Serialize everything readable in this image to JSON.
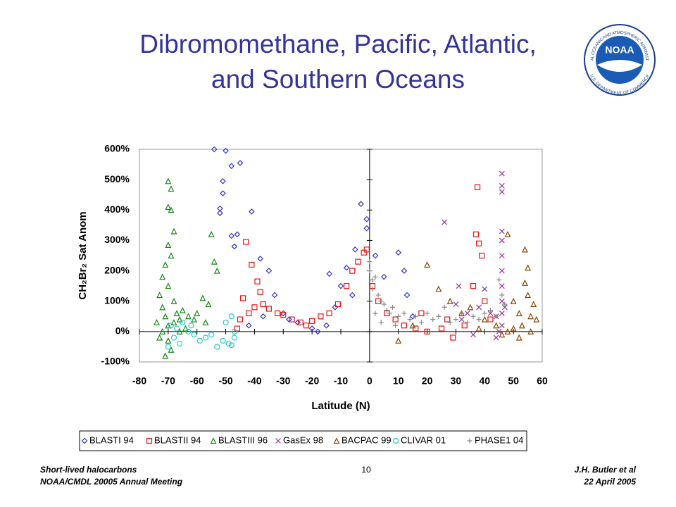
{
  "chart_data": {
    "type": "scatter",
    "title": [
      "Dibromomethane, Pacific, Atlantic,",
      "and Southern Oceans"
    ],
    "xlabel": "Latitude (N)",
    "ylabel": "CH₂Br₂ Sat Anom",
    "xlim": [
      -80,
      60
    ],
    "xticks": [
      -80,
      -70,
      -60,
      -50,
      -40,
      -30,
      -20,
      -10,
      0,
      10,
      20,
      30,
      40,
      50,
      60
    ],
    "ylim": [
      -100,
      600
    ],
    "yticks": [
      {
        "value": -100,
        "label": "-100%"
      },
      {
        "value": 0,
        "label": "0%"
      },
      {
        "value": 100,
        "label": "100%"
      },
      {
        "value": 200,
        "label": "200%"
      },
      {
        "value": 300,
        "label": "300%"
      },
      {
        "value": 400,
        "label": "400%"
      },
      {
        "value": 500,
        "label": "500%"
      },
      {
        "value": 600,
        "label": "600%"
      }
    ],
    "grid": false,
    "legend": "bottom",
    "series": [
      {
        "name": "BLASTI 94",
        "color": "#3333cc",
        "marker": "diamond",
        "x": [
          -54,
          -50,
          -48,
          -45,
          -51,
          -51,
          -52,
          -52,
          -48,
          -46,
          -47,
          -41,
          -38,
          -35,
          -33,
          -30,
          -25,
          -20,
          -15,
          -14,
          -10,
          -8,
          -5,
          -3,
          -1,
          -1,
          2,
          5,
          10,
          12,
          13,
          15,
          -42,
          -37,
          -28,
          -18,
          -12,
          -6
        ],
        "values": [
          600,
          595,
          545,
          555,
          495,
          455,
          405,
          390,
          315,
          320,
          280,
          395,
          240,
          200,
          120,
          60,
          30,
          10,
          20,
          190,
          150,
          210,
          270,
          420,
          370,
          340,
          250,
          180,
          260,
          200,
          120,
          50,
          20,
          50,
          40,
          0,
          80,
          120
        ]
      },
      {
        "name": "BLASTII 94",
        "color": "#ee1111",
        "marker": "square",
        "x": [
          -43,
          -41,
          -39,
          -38,
          -44,
          -45,
          -42,
          -37,
          -35,
          -32,
          -30,
          -27,
          -24,
          -20,
          -17,
          -14,
          -11,
          -8,
          -6,
          -4,
          -2,
          -1,
          1,
          3,
          6,
          9,
          12,
          16,
          20,
          25,
          29,
          33,
          36,
          37,
          37.5,
          38,
          39,
          40,
          42,
          -46,
          -40,
          -22,
          18,
          27
        ],
        "values": [
          295,
          220,
          165,
          130,
          110,
          40,
          60,
          90,
          75,
          60,
          55,
          40,
          30,
          35,
          50,
          60,
          90,
          150,
          200,
          230,
          260,
          270,
          150,
          100,
          60,
          40,
          20,
          10,
          0,
          10,
          -20,
          20,
          150,
          320,
          475,
          290,
          250,
          100,
          40,
          10,
          80,
          20,
          60,
          40
        ]
      },
      {
        "name": "BLASTIII 96",
        "color": "#118811",
        "marker": "triangle",
        "x": [
          -70,
          -69,
          -70,
          -69,
          -68,
          -70,
          -69,
          -71,
          -72,
          -70,
          -73,
          -72,
          -71,
          -70,
          -72,
          -70,
          -69,
          -71,
          -68,
          -67,
          -66,
          -65,
          -63,
          -61,
          -60,
          -58,
          -56,
          -55,
          -54,
          -53,
          -57,
          -74,
          -73,
          -68,
          -66,
          -64
        ],
        "values": [
          495,
          470,
          410,
          400,
          330,
          285,
          250,
          220,
          180,
          150,
          120,
          80,
          50,
          20,
          0,
          -30,
          -60,
          -80,
          30,
          60,
          40,
          70,
          50,
          40,
          60,
          110,
          90,
          320,
          230,
          200,
          30,
          30,
          -20,
          100,
          0,
          10
        ]
      },
      {
        "name": "GasEx 98",
        "color": "#993399",
        "marker": "x",
        "x": [
          26,
          31,
          30,
          34,
          38,
          42,
          44,
          46,
          46,
          46,
          46,
          46,
          46,
          46,
          46,
          46,
          46,
          46,
          45,
          47,
          40,
          36,
          32,
          44
        ],
        "values": [
          360,
          150,
          90,
          60,
          80,
          60,
          50,
          520,
          480,
          460,
          330,
          300,
          250,
          200,
          150,
          100,
          60,
          20,
          0,
          80,
          140,
          -10,
          40,
          -20
        ]
      },
      {
        "name": "BACPAC 99",
        "color": "#884400",
        "marker": "triangle",
        "x": [
          20,
          24,
          28,
          32,
          35,
          40,
          44,
          48,
          50,
          52,
          54,
          55,
          54,
          55,
          56,
          57,
          50,
          48,
          53,
          58,
          10,
          15,
          38,
          46,
          52,
          56
        ],
        "values": [
          220,
          140,
          100,
          60,
          80,
          40,
          20,
          320,
          100,
          60,
          270,
          210,
          160,
          120,
          50,
          90,
          10,
          0,
          20,
          40,
          -30,
          20,
          10,
          -10,
          -20,
          0
        ]
      },
      {
        "name": "CLIVAR 01",
        "color": "#22cccc",
        "marker": "circle",
        "x": [
          -70,
          -68,
          -67,
          -65,
          -63,
          -61,
          -59,
          -57,
          -55,
          -53,
          -51,
          -50,
          -49,
          -48,
          -48,
          -47,
          -47,
          -62,
          -66,
          -69
        ],
        "values": [
          -50,
          -20,
          10,
          30,
          0,
          -10,
          -30,
          -20,
          -10,
          -50,
          -30,
          30,
          -40,
          -45,
          50,
          0,
          -20,
          20,
          -40,
          20
        ]
      },
      {
        "name": "PHASE1 04",
        "color": "#888888",
        "marker": "plus",
        "x": [
          0,
          0,
          1,
          1,
          2,
          3,
          4,
          5,
          6,
          7,
          8,
          10,
          12,
          14,
          16,
          18,
          20,
          22,
          24,
          26,
          28,
          30,
          32,
          34,
          36,
          38,
          40,
          42,
          44,
          45,
          46,
          47,
          2,
          4,
          9
        ],
        "values": [
          230,
          200,
          170,
          140,
          180,
          120,
          100,
          90,
          70,
          60,
          80,
          50,
          60,
          40,
          50,
          30,
          60,
          40,
          50,
          80,
          30,
          40,
          60,
          30,
          50,
          40,
          60,
          70,
          50,
          170,
          120,
          90,
          60,
          30,
          20
        ]
      }
    ]
  },
  "logo": {
    "text": "NOAA",
    "ring_top": "NATIONAL OCEANIC AND ATMOSPHERIC ADMINISTRATION",
    "ring_bottom": "U.S. DEPARTMENT OF COMMERCE"
  },
  "footer": {
    "left": [
      "Short-lived halocarbons",
      "NOAA/CMDL 20005 Annual Meeting"
    ],
    "center": "10",
    "right": [
      "J.H. Butler et al",
      "22 April 2005"
    ]
  }
}
